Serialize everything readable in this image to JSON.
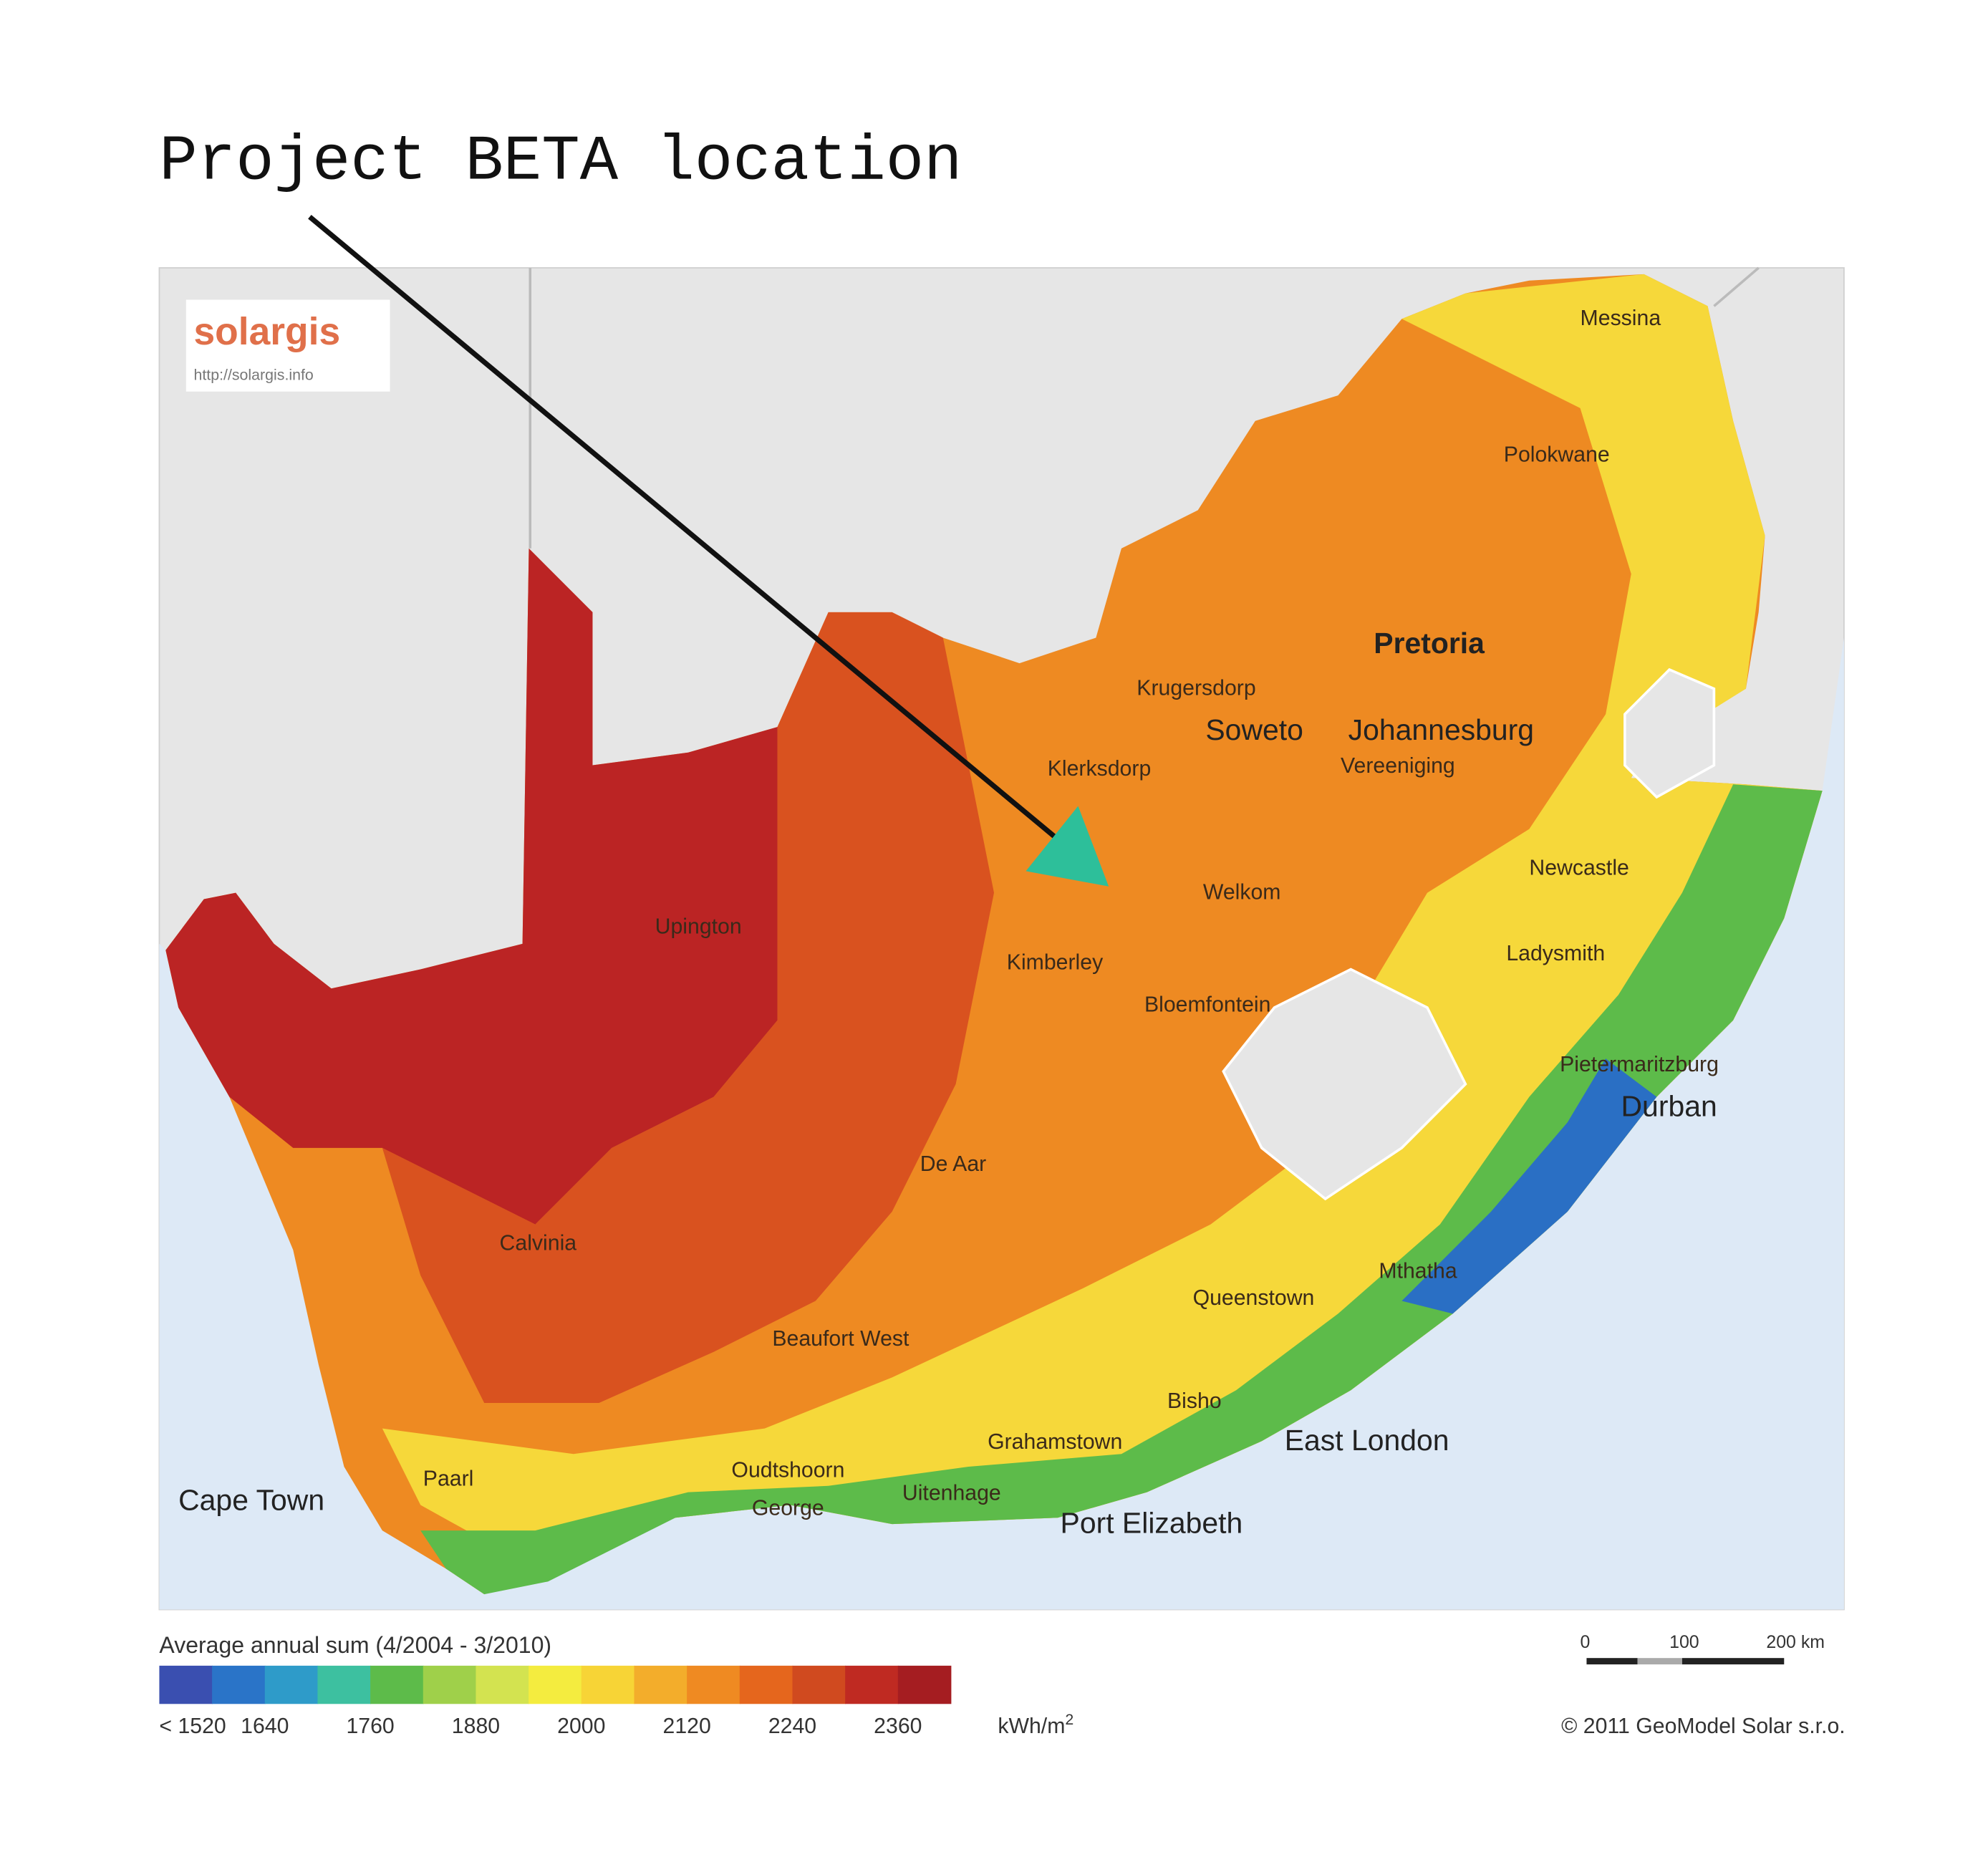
{
  "header": {
    "title": "Project BETA  location"
  },
  "map": {
    "logo": {
      "name": "solargis",
      "url": "http://solargis.info"
    },
    "cities": [
      {
        "label": "Messina"
      },
      {
        "label": "Polokwane"
      },
      {
        "label": "Pretoria"
      },
      {
        "label": "Krugersdorp"
      },
      {
        "label": "Soweto"
      },
      {
        "label": "Johannesburg"
      },
      {
        "label": "Klerksdorp"
      },
      {
        "label": "Vereeniging"
      },
      {
        "label": "Newcastle"
      },
      {
        "label": "Welkom"
      },
      {
        "label": "Upington"
      },
      {
        "label": "Kimberley"
      },
      {
        "label": "Ladysmith"
      },
      {
        "label": "Bloemfontein"
      },
      {
        "label": "Pietermaritzburg"
      },
      {
        "label": "Durban"
      },
      {
        "label": "De Aar"
      },
      {
        "label": "Calvinia"
      },
      {
        "label": "Mthatha"
      },
      {
        "label": "Queenstown"
      },
      {
        "label": "Beaufort West"
      },
      {
        "label": "Bisho"
      },
      {
        "label": "Grahamstown"
      },
      {
        "label": "East London"
      },
      {
        "label": "Oudtshoorn"
      },
      {
        "label": "Paarl"
      },
      {
        "label": "Cape Town"
      },
      {
        "label": "George"
      },
      {
        "label": "Uitenhage"
      },
      {
        "label": "Port Elizabeth"
      }
    ]
  },
  "legend": {
    "title": "Average annual sum (4/2004 - 3/2010)",
    "colors": [
      "#3a4fb0",
      "#2a74c8",
      "#2e9bc9",
      "#3dc0a0",
      "#5dbb4a",
      "#9fd04a",
      "#d3e350",
      "#f4ec3f",
      "#f7d436",
      "#f3ad2b",
      "#ef8a22",
      "#e5661d",
      "#d04a1f",
      "#bf2a22",
      "#a51d21"
    ],
    "ticks": [
      "< 1520",
      "1640",
      "1760",
      "1880",
      "2000",
      "2120",
      "2240",
      "2360"
    ],
    "unit": "kWh/m",
    "unit_sup": "2"
  },
  "scale_bar": {
    "ticks": [
      "0",
      "100",
      "200 km"
    ]
  },
  "copyright": "© 2011 GeoModel Solar s.r.o."
}
